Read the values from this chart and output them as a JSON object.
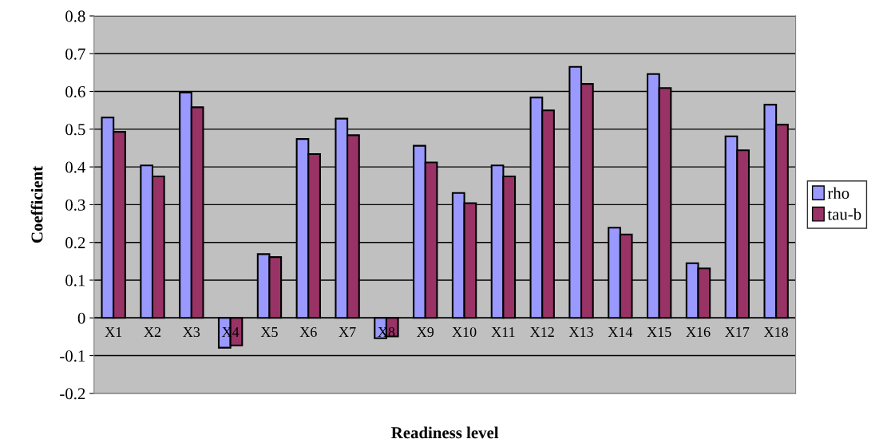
{
  "chart_data": {
    "type": "bar",
    "xlabel": "Readiness level",
    "ylabel": "Coefficient",
    "categories": [
      "X1",
      "X2",
      "X3",
      "X4",
      "X5",
      "X6",
      "X7",
      "X8",
      "X9",
      "X10",
      "X11",
      "X12",
      "X13",
      "X14",
      "X15",
      "X16",
      "X17",
      "X18"
    ],
    "series": [
      {
        "name": "rho",
        "color": "#9999ff",
        "values": [
          0.531,
          0.404,
          0.597,
          -0.079,
          0.169,
          0.474,
          0.528,
          -0.054,
          0.456,
          0.331,
          0.404,
          0.584,
          0.665,
          0.239,
          0.646,
          0.145,
          0.481,
          0.565
        ]
      },
      {
        "name": "tau-b",
        "color": "#993366",
        "values": [
          0.493,
          0.375,
          0.558,
          -0.073,
          0.161,
          0.434,
          0.484,
          -0.049,
          0.412,
          0.304,
          0.375,
          0.55,
          0.62,
          0.221,
          0.609,
          0.131,
          0.444,
          0.512
        ]
      }
    ],
    "ylim": [
      -0.2,
      0.8
    ],
    "yticks": [
      -0.2,
      -0.1,
      0,
      0.1,
      0.2,
      0.3,
      0.4,
      0.5,
      0.6,
      0.7,
      0.8
    ],
    "grid": "y",
    "legend": "right"
  }
}
